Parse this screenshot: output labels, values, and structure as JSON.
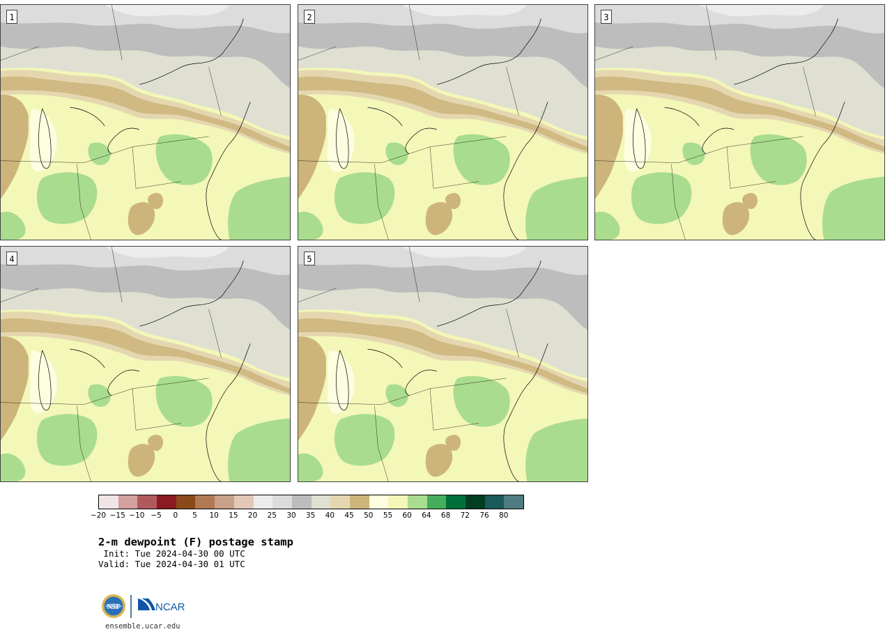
{
  "panels": [
    {
      "number": "1"
    },
    {
      "number": "2"
    },
    {
      "number": "3"
    },
    {
      "number": "4"
    },
    {
      "number": "5"
    }
  ],
  "colorbar": {
    "colors": [
      "#f0e4e4",
      "#d4a0a0",
      "#b05a5e",
      "#8c1a22",
      "#8b4a1a",
      "#b07a55",
      "#c9a08a",
      "#e3c8b8",
      "#ececec",
      "#dcdcdc",
      "#bdbdbd",
      "#dfe0d2",
      "#e4d7b0",
      "#ccb47a",
      "#fdfde0",
      "#f3f7b8",
      "#a9dc8e",
      "#45ad5b",
      "#00703a",
      "#003d22",
      "#1b5a5c",
      "#4f7c80"
    ],
    "tick_labels": [
      "−20",
      "−15",
      "−10",
      "−5",
      "0",
      "5",
      "10",
      "15",
      "20",
      "25",
      "30",
      "35",
      "40",
      "45",
      "50",
      "55",
      "60",
      "64",
      "68",
      "72",
      "76",
      "80"
    ]
  },
  "title": {
    "main": "2-m dewpoint (F) postage stamp",
    "init": " Init: Tue 2024-04-30 00 UTC",
    "valid": "Valid: Tue 2024-04-30 01 UTC"
  },
  "logos": {
    "nsf": "NSF",
    "ncar": "NCAR"
  },
  "footer": {
    "url": "ensemble.ucar.edu"
  }
}
